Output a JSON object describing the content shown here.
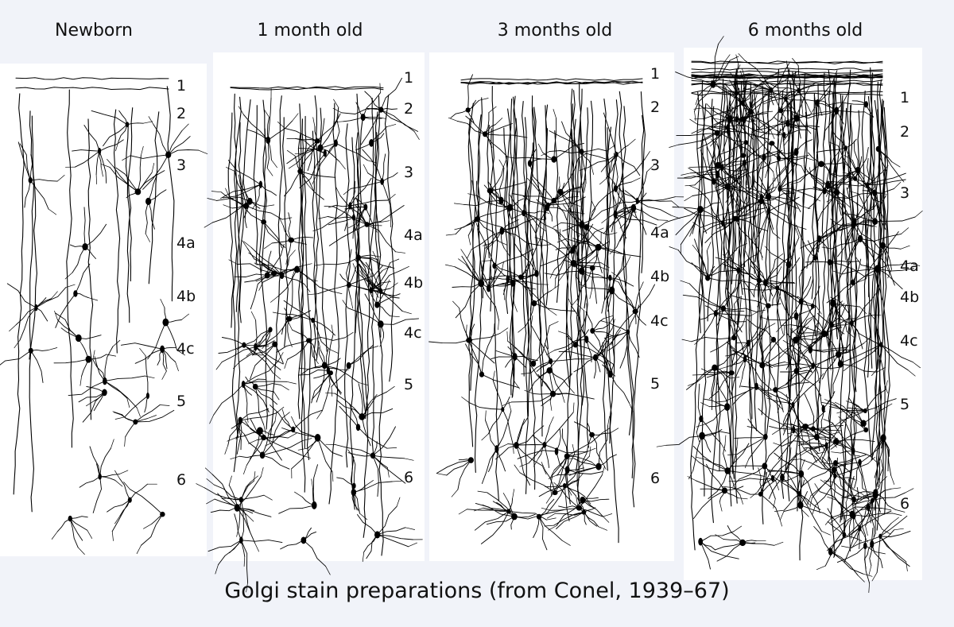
{
  "panels": [
    {
      "title": "Newborn",
      "layers": [
        "1",
        "2",
        "3",
        "4a",
        "4b",
        "4c",
        "5",
        "6"
      ],
      "density": "sparse"
    },
    {
      "title": "1 month old",
      "layers": [
        "1",
        "2",
        "3",
        "4a",
        "4b",
        "4c",
        "5",
        "6"
      ],
      "density": "moderate"
    },
    {
      "title": "3 months old",
      "layers": [
        "1",
        "2",
        "3",
        "4a",
        "4b",
        "4c",
        "5",
        "6"
      ],
      "density": "moderate-dense"
    },
    {
      "title": "6 months old",
      "layers": [
        "1",
        "2",
        "3",
        "4a",
        "4b",
        "4c",
        "5",
        "6"
      ],
      "density": "very dense"
    }
  ],
  "caption": "Golgi stain preparations (from Conel, 1939–67)",
  "colors": {
    "background": "#f1f3f9",
    "stain": "#000000",
    "panel_bg": "#ffffff"
  }
}
